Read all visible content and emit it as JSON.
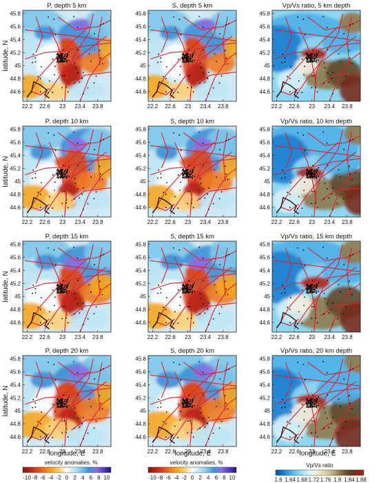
{
  "figure": {
    "columns": [
      {
        "key": "P",
        "colorbar": "velocity"
      },
      {
        "key": "S",
        "colorbar": "velocity"
      },
      {
        "key": "ratio",
        "colorbar": "ratio"
      }
    ],
    "rows": [
      {
        "titles": [
          "P, depth 5 km",
          "S, depth 5 km",
          "Vp/Vs ratio, 5 km depth"
        ]
      },
      {
        "titles": [
          "P, depth 10 km",
          "S, depth 10 km",
          "Vp/Vs ratio, 10 km depth"
        ]
      },
      {
        "titles": [
          "P, depth 15 km",
          "S, depth 15 km",
          "Vp/Vs ratio, 15 km depth"
        ]
      },
      {
        "titles": [
          "P, depth 20 km",
          "S, depth 20 km",
          "Vp/Vs ratio, 20 km depth"
        ]
      }
    ],
    "ylabel": "latitude, N",
    "xlabel": "longitude, E",
    "x_ticks": [
      "22.2",
      "22.6",
      "23",
      "23.4",
      "23.8"
    ],
    "y_ticks": [
      "45.8",
      "45.6",
      "45.4",
      "45.2",
      "45",
      "44.8",
      "44.6"
    ],
    "velocity_colorbar": {
      "label": "velocity anomalies, %",
      "ticks": [
        "-10",
        "-8",
        "-6",
        "-4",
        "-2",
        "0",
        "2",
        "4",
        "6",
        "8",
        "10"
      ],
      "colors": [
        "#7a1b12",
        "#b3261a",
        "#d9481e",
        "#ee7a22",
        "#f5a623",
        "#ffd27a",
        "#ffffff",
        "#bfe6f5",
        "#7fc6ea",
        "#3c8fd6",
        "#8a6ee0",
        "#5a3dbf",
        "#20127a"
      ]
    },
    "ratio_colorbar": {
      "label": "Vp/Vs ratio",
      "ticks": [
        "1.6",
        "1.64",
        "1.68",
        "1.72",
        "1.76",
        "1.8",
        "1.84",
        "1.88"
      ],
      "colors": [
        "#0b4f9e",
        "#1f7fd0",
        "#4fb0e8",
        "#8fd6f2",
        "#d6f0f6",
        "#f2efe2",
        "#e3d7b3",
        "#c7b589",
        "#8f7a4e",
        "#5f4a2e",
        "#7a2b1c",
        "#a6281a"
      ]
    },
    "colors": {
      "faults": "#e0202a",
      "events": "#000000",
      "border": "#1a1a1a"
    }
  }
}
